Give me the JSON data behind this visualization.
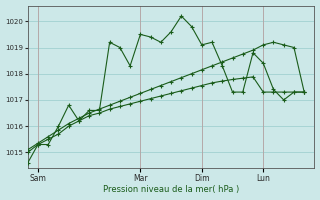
{
  "bg_color": "#cce8e8",
  "grid_color": "#99cccc",
  "line_color": "#1a5c1a",
  "xlabel": "Pression niveau de la mer( hPa )",
  "ylim": [
    1014.4,
    1020.6
  ],
  "yticks": [
    1015,
    1016,
    1017,
    1018,
    1019,
    1020
  ],
  "xlim": [
    0,
    28
  ],
  "xtick_labels": [
    "Sam",
    "Mar",
    "Dim",
    "Lun"
  ],
  "xtick_day_x": [
    1,
    11,
    17,
    23
  ],
  "vline_positions": [
    1,
    11,
    17,
    23
  ],
  "line1_x": [
    0,
    1,
    2,
    3,
    4,
    5,
    6,
    7,
    8,
    9,
    10,
    11,
    12,
    13,
    14,
    15,
    16,
    17,
    18,
    19,
    20,
    21,
    22,
    23,
    24,
    25,
    26,
    27
  ],
  "line1_y": [
    1014.6,
    1015.3,
    1015.3,
    1016.0,
    1016.8,
    1016.2,
    1016.6,
    1016.6,
    1019.2,
    1019.0,
    1018.3,
    1019.5,
    1019.4,
    1019.2,
    1019.6,
    1020.2,
    1019.8,
    1019.1,
    1019.2,
    1018.3,
    1017.3,
    1017.3,
    1018.8,
    1018.4,
    1017.4,
    1017.0,
    1017.3,
    1017.3
  ],
  "line2_x": [
    0,
    1,
    2,
    3,
    4,
    5,
    6,
    7,
    8,
    9,
    10,
    11,
    12,
    13,
    14,
    15,
    16,
    17,
    18,
    19,
    20,
    21,
    22,
    23,
    24,
    25,
    26,
    27
  ],
  "line2_y": [
    1015.0,
    1015.3,
    1015.5,
    1015.7,
    1016.0,
    1016.2,
    1016.4,
    1016.5,
    1016.65,
    1016.75,
    1016.85,
    1016.95,
    1017.05,
    1017.15,
    1017.25,
    1017.35,
    1017.45,
    1017.55,
    1017.65,
    1017.72,
    1017.78,
    1017.83,
    1017.88,
    1017.3,
    1017.3,
    1017.3,
    1017.3,
    1017.3
  ],
  "line3_x": [
    0,
    1,
    2,
    3,
    4,
    5,
    6,
    7,
    8,
    9,
    10,
    11,
    12,
    13,
    14,
    15,
    16,
    17,
    18,
    19,
    20,
    21,
    22,
    23,
    24,
    25,
    26,
    27
  ],
  "line3_y": [
    1015.1,
    1015.35,
    1015.6,
    1015.85,
    1016.1,
    1016.3,
    1016.5,
    1016.65,
    1016.8,
    1016.95,
    1017.1,
    1017.25,
    1017.4,
    1017.55,
    1017.7,
    1017.85,
    1018.0,
    1018.15,
    1018.3,
    1018.45,
    1018.6,
    1018.75,
    1018.9,
    1019.1,
    1019.2,
    1019.1,
    1019.0,
    1017.3
  ]
}
